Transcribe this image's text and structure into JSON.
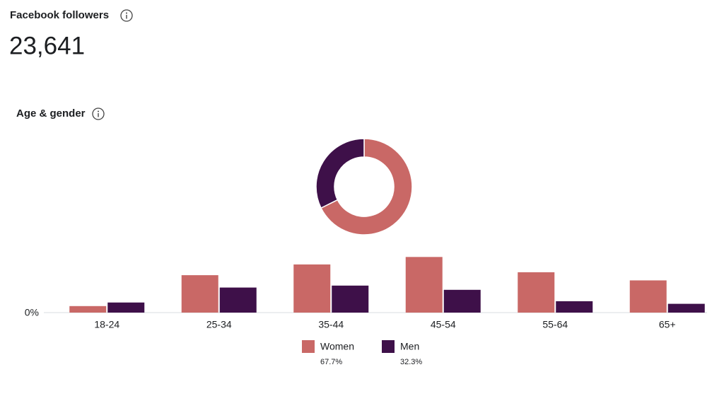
{
  "header": {
    "title": "Facebook followers",
    "value": "23,641"
  },
  "section": {
    "title": "Age & gender"
  },
  "chart_data": [
    {
      "type": "donut",
      "categories": [
        "Women",
        "Men"
      ],
      "values": [
        67.7,
        32.3
      ],
      "value_labels": [
        "67.7%",
        "32.3%"
      ],
      "colors": [
        "#c96866",
        "#3e1049"
      ]
    },
    {
      "type": "bar",
      "categories": [
        "18-24",
        "25-34",
        "35-44",
        "45-54",
        "55-64",
        "65+"
      ],
      "series": [
        {
          "color": "#c96866",
          "values": [
            2.0,
            11.5,
            14.8,
            17.1,
            12.4,
            9.9
          ]
        },
        {
          "color": "#3e1049",
          "values": [
            3.1,
            7.7,
            8.3,
            7.0,
            3.5,
            2.7
          ]
        }
      ],
      "ylim": [
        0,
        20
      ],
      "yticks": [
        {
          "value": 0,
          "label": "0%"
        }
      ],
      "grid": false
    }
  ]
}
